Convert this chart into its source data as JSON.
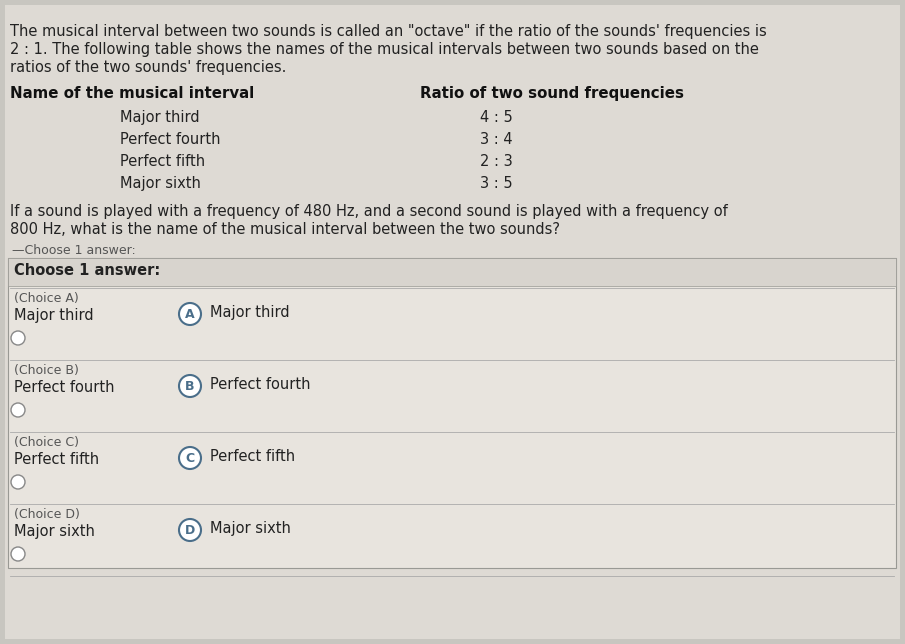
{
  "bg_color": "#c8c6c0",
  "content_bg": "#dedad4",
  "box_bg": "#e8e4de",
  "intro_lines": [
    "The musical interval between two sounds is called an \"octave\" if the ratio of the sounds' frequencies is",
    "2 : 1. The following table shows the names of the musical intervals between two sounds based on the",
    "ratios of the two sounds' frequencies."
  ],
  "table_header_col1": "Name of the musical interval",
  "table_header_col2": "Ratio of two sound frequencies",
  "table_rows": [
    [
      "Major third",
      "4 : 5"
    ],
    [
      "Perfect fourth",
      "3 : 4"
    ],
    [
      "Perfect fifth",
      "2 : 3"
    ],
    [
      "Major sixth",
      "3 : 5"
    ]
  ],
  "question_lines": [
    "If a sound is played with a frequency of 480 Hz, and a second sound is played with a frequency of",
    "800 Hz, what is the name of the musical interval between the two sounds?"
  ],
  "choose_outer_label": "Choose 1 answer:",
  "choose_inner_label": "Choose 1 answer:",
  "choices": [
    {
      "letter": "A",
      "line1": "(Choice A)",
      "line2": "Major third",
      "text": "Major third"
    },
    {
      "letter": "B",
      "line1": "(Choice B)",
      "line2": "Perfect fourth",
      "text": "Perfect fourth"
    },
    {
      "letter": "C",
      "line1": "(Choice C)",
      "line2": "Perfect fifth",
      "text": "Perfect fifth"
    },
    {
      "letter": "D",
      "line1": "(Choice D)",
      "line2": "Major sixth",
      "text": "Major sixth"
    }
  ],
  "circle_color": "#4a6e8a",
  "radio_color": "#888888",
  "text_color": "#222222",
  "dim_text_color": "#555555",
  "header_color": "#111111",
  "separator_color": "#aaaaaa",
  "font_size_body": 10.5,
  "font_size_small": 9.0,
  "font_size_header": 10.8
}
